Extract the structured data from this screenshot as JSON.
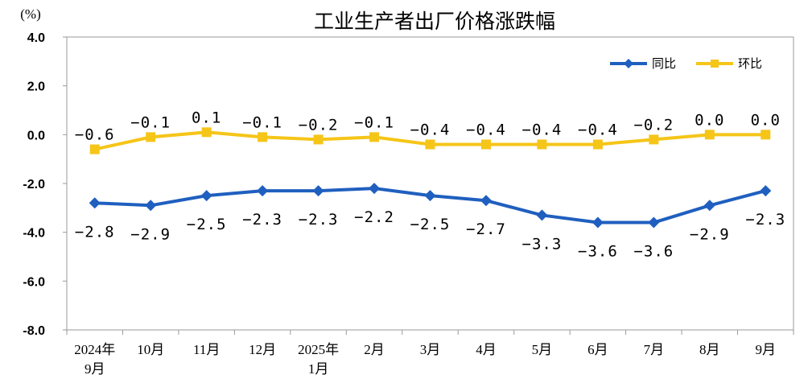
{
  "chart_data": {
    "type": "line",
    "title": "工业生产者出厂价格涨跌幅",
    "unit_label": "(%)",
    "ylim": [
      -8.0,
      4.0
    ],
    "y_ticks": [
      "4.0",
      "2.0",
      "0.0",
      "-2.0",
      "-4.0",
      "-6.0",
      "-8.0"
    ],
    "grid": false,
    "legend_position": "top-right",
    "categories": [
      [
        "2024年",
        "9月"
      ],
      [
        "10月"
      ],
      [
        "11月"
      ],
      [
        "12月"
      ],
      [
        "2025年",
        "1月"
      ],
      [
        "2月"
      ],
      [
        "3月"
      ],
      [
        "4月"
      ],
      [
        "5月"
      ],
      [
        "6月"
      ],
      [
        "7月"
      ],
      [
        "8月"
      ],
      [
        "9月"
      ]
    ],
    "series": [
      {
        "name": "同比",
        "color": "#1f5fbf",
        "marker": "diamond",
        "values": [
          -2.8,
          -2.9,
          -2.5,
          -2.3,
          -2.3,
          -2.2,
          -2.5,
          -2.7,
          -3.3,
          -3.6,
          -3.6,
          -2.9,
          -2.3
        ],
        "labels": [
          "-2.8",
          "-2.9",
          "-2.5",
          "-2.3",
          "-2.3",
          "-2.2",
          "-2.5",
          "-2.7",
          "-3.3",
          "-3.6",
          "-3.6",
          "-2.9",
          "-2.3"
        ]
      },
      {
        "name": "环比",
        "color": "#f5c518",
        "marker": "square",
        "values": [
          -0.6,
          -0.1,
          0.1,
          -0.1,
          -0.2,
          -0.1,
          -0.4,
          -0.4,
          -0.4,
          -0.4,
          -0.2,
          0.0,
          0.0
        ],
        "labels": [
          "-0.6",
          "-0.1",
          "0.1",
          "-0.1",
          "-0.2",
          "-0.1",
          "-0.4",
          "-0.4",
          "-0.4",
          "-0.4",
          "-0.2",
          "0.0",
          "0.0"
        ]
      }
    ]
  }
}
